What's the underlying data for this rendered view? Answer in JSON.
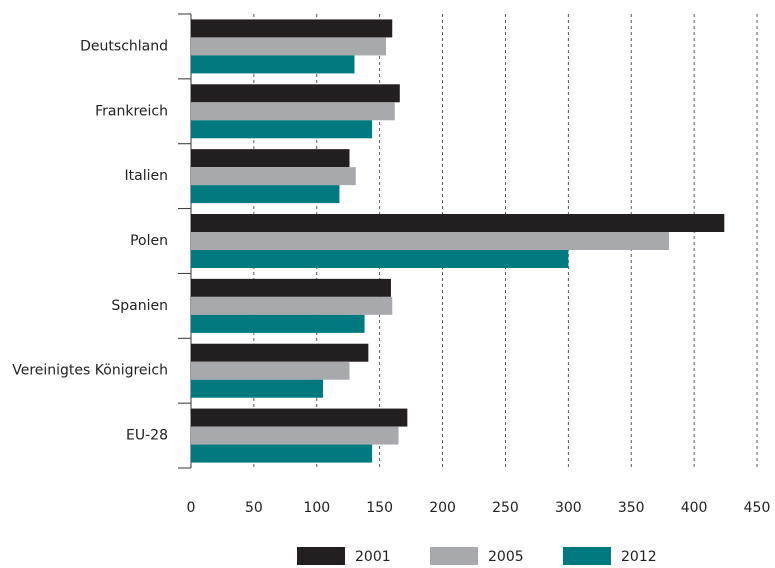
{
  "chart_data": {
    "type": "bar",
    "orientation": "horizontal",
    "categories": [
      "Deutschland",
      "Frankreich",
      "Italien",
      "Polen",
      "Spanien",
      "Vereinigtes Königreich",
      "EU-28"
    ],
    "series": [
      {
        "name": "2001",
        "color": "#231f20",
        "values": [
          160,
          166,
          126,
          424,
          159,
          141,
          172
        ]
      },
      {
        "name": "2005",
        "color": "#a7a9ac",
        "values": [
          155,
          162,
          131,
          380,
          160,
          126,
          165
        ]
      },
      {
        "name": "2012",
        "color": "#007a7f",
        "values": [
          130,
          144,
          118,
          300,
          138,
          105,
          144
        ]
      }
    ],
    "xlim": [
      0,
      450
    ],
    "xticks": [
      0,
      50,
      100,
      150,
      200,
      250,
      300,
      350,
      400,
      450
    ],
    "grid": true
  }
}
